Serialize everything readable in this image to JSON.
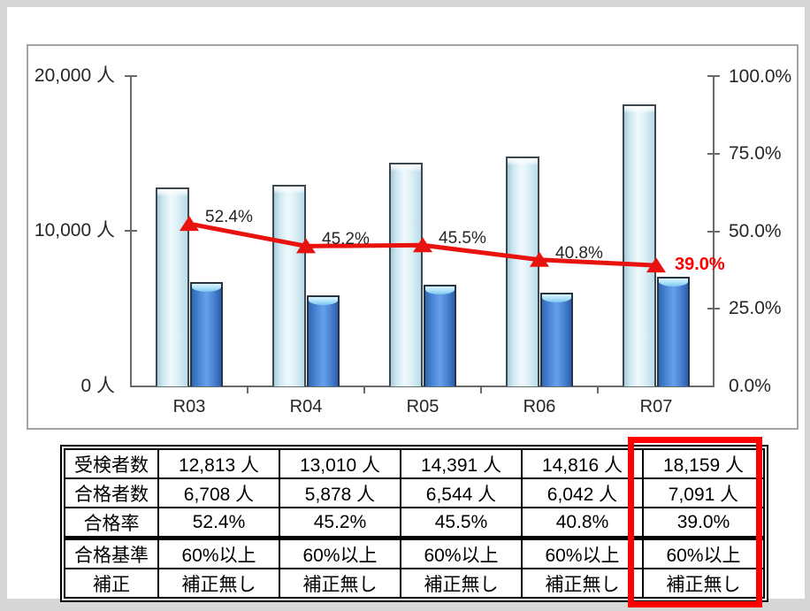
{
  "chart": {
    "left_axis": {
      "labels": [
        "20,000 人",
        "10,000 人",
        "0 人"
      ]
    },
    "right_axis": {
      "labels": [
        "100.0%",
        "75.0%",
        "50.0%",
        "25.0%",
        "0.0%"
      ]
    },
    "categories": [
      "R03",
      "R04",
      "R05",
      "R06",
      "R07"
    ]
  },
  "chart_data": {
    "type": "bar",
    "subtype": "bar+line combo, dual axis",
    "categories": [
      "R03",
      "R04",
      "R05",
      "R06",
      "R07"
    ],
    "series": [
      {
        "name": "受検者数",
        "type": "bar",
        "axis": "left",
        "color": "#cfe9f2",
        "values": [
          12813,
          13010,
          14391,
          14816,
          18159
        ]
      },
      {
        "name": "合格者数",
        "type": "bar",
        "axis": "left",
        "color": "#4d86d6",
        "values": [
          6708,
          5878,
          6544,
          6042,
          7091
        ]
      },
      {
        "name": "合格率",
        "type": "line",
        "axis": "right",
        "color": "#e8120e",
        "values": [
          52.4,
          45.2,
          45.5,
          40.8,
          39.0
        ]
      }
    ],
    "line_labels": [
      "52.4%",
      "45.2%",
      "45.5%",
      "40.8%",
      "39.0%"
    ],
    "left_ylim": [
      0,
      20000
    ],
    "right_ylim": [
      0,
      100
    ],
    "left_unit": "人",
    "right_unit": "%",
    "grid": false,
    "legend": "none"
  },
  "table": {
    "rows": [
      {
        "label": "受検者数",
        "values": [
          "12,813 人",
          "13,010 人",
          "14,391 人",
          "14,816 人",
          "18,159 人"
        ]
      },
      {
        "label": "合格者数",
        "values": [
          "6,708 人",
          "5,878 人",
          "6,544 人",
          "6,042 人",
          "7,091 人"
        ]
      },
      {
        "label": "合格率",
        "values": [
          "52.4%",
          "45.2%",
          "45.5%",
          "40.8%",
          "39.0%"
        ],
        "red_value_col": 4
      },
      {
        "label": "合格基準",
        "values": [
          "60%以上",
          "60%以上",
          "60%以上",
          "60%以上",
          "60%以上"
        ]
      },
      {
        "label": "補正",
        "values": [
          "補正無し",
          "補正無し",
          "補正無し",
          "補正無し",
          "補正無し"
        ]
      }
    ],
    "highlight_column": 4
  },
  "colors": {
    "examinees_bar": "#cfe9f2",
    "passers_bar": "#4d86d6",
    "pass_rate_line": "#e8120e",
    "highlight_red": "#fe0000",
    "axis_gray": "#6a6a6a",
    "frame_gray": "#d6d6d6"
  }
}
